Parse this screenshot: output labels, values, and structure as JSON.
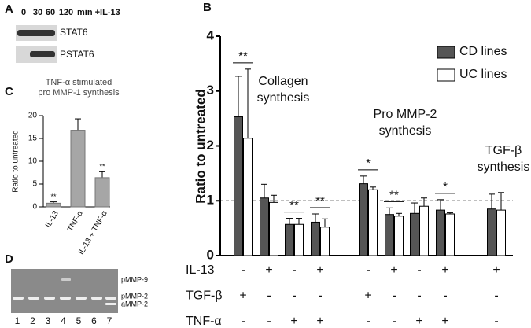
{
  "panels": {
    "A": {
      "label": "A",
      "header": [
        "0",
        "30",
        "60",
        "120",
        "min +IL-13"
      ],
      "bands": [
        "STAT6",
        "PSTAT6"
      ]
    },
    "D": {
      "label": "D",
      "bands": [
        "pMMP-9",
        "pMMP-2",
        "aMMP-2"
      ],
      "lanes": [
        "1",
        "2",
        "3",
        "4",
        "5",
        "6",
        "7"
      ]
    }
  },
  "chart_data": [
    {
      "panel": "C",
      "type": "bar",
      "title": [
        "TNF-α stimulated",
        "pro MMP-1 synthesis"
      ],
      "ylabel": "Ratio to untreated",
      "categories": [
        "IL-13",
        "TNF-α",
        "IL-13 + TNF-α"
      ],
      "values": [
        0.8,
        16.8,
        6.4
      ],
      "errors": [
        0.3,
        2.5,
        1.3
      ],
      "significance": [
        "**",
        null,
        "**"
      ],
      "color": "#a6a6a6",
      "ylim": [
        0,
        20
      ],
      "yticks": [
        0,
        5,
        10,
        15,
        20
      ]
    },
    {
      "panel": "B",
      "type": "bar",
      "ylabel": "Ratio to untreated",
      "ylim": [
        0,
        4
      ],
      "yticks": [
        0,
        1,
        2,
        3,
        4
      ],
      "reference_line": 1,
      "categories": [
        null,
        null,
        null,
        null,
        null,
        null,
        null,
        null,
        null
      ],
      "series": [
        {
          "name": "CD lines",
          "color": "#555555",
          "values": [
            2.53,
            1.05,
            0.57,
            0.61,
            1.31,
            0.75,
            0.77,
            0.83,
            0.85
          ],
          "errors": [
            0.74,
            0.25,
            0.11,
            0.15,
            0.14,
            0.12,
            0.19,
            0.19,
            0.27
          ]
        },
        {
          "name": "UC lines",
          "color": "#ffffff",
          "values": [
            2.14,
            0.97,
            0.57,
            0.52,
            1.2,
            0.72,
            0.9,
            0.76,
            0.83
          ],
          "errors": [
            1.26,
            0.13,
            0.11,
            0.15,
            0.05,
            0.05,
            0.15,
            0.02,
            0.32
          ]
        }
      ],
      "legend": "upper right",
      "significance": [
        "**",
        null,
        "**",
        "**",
        "*",
        "**",
        null,
        "*",
        null
      ],
      "group_labels": [
        [
          "Collagen",
          "synthesis"
        ],
        [
          "Pro MMP-2",
          "synthesis"
        ],
        [
          "TGF-β",
          "synthesis"
        ]
      ],
      "conditions": [
        {
          "name": "IL-13",
          "signs": [
            "-",
            "+",
            "-",
            "+",
            "-",
            "+",
            "-",
            "+",
            "+"
          ]
        },
        {
          "name": "TGF-β",
          "signs": [
            "+",
            "-",
            "-",
            "-",
            "+",
            "-",
            "-",
            "-",
            "-"
          ]
        },
        {
          "name": "TNF-α",
          "signs": [
            "-",
            "-",
            "+",
            "+",
            "-",
            "-",
            "+",
            "+",
            "-"
          ]
        }
      ]
    }
  ]
}
